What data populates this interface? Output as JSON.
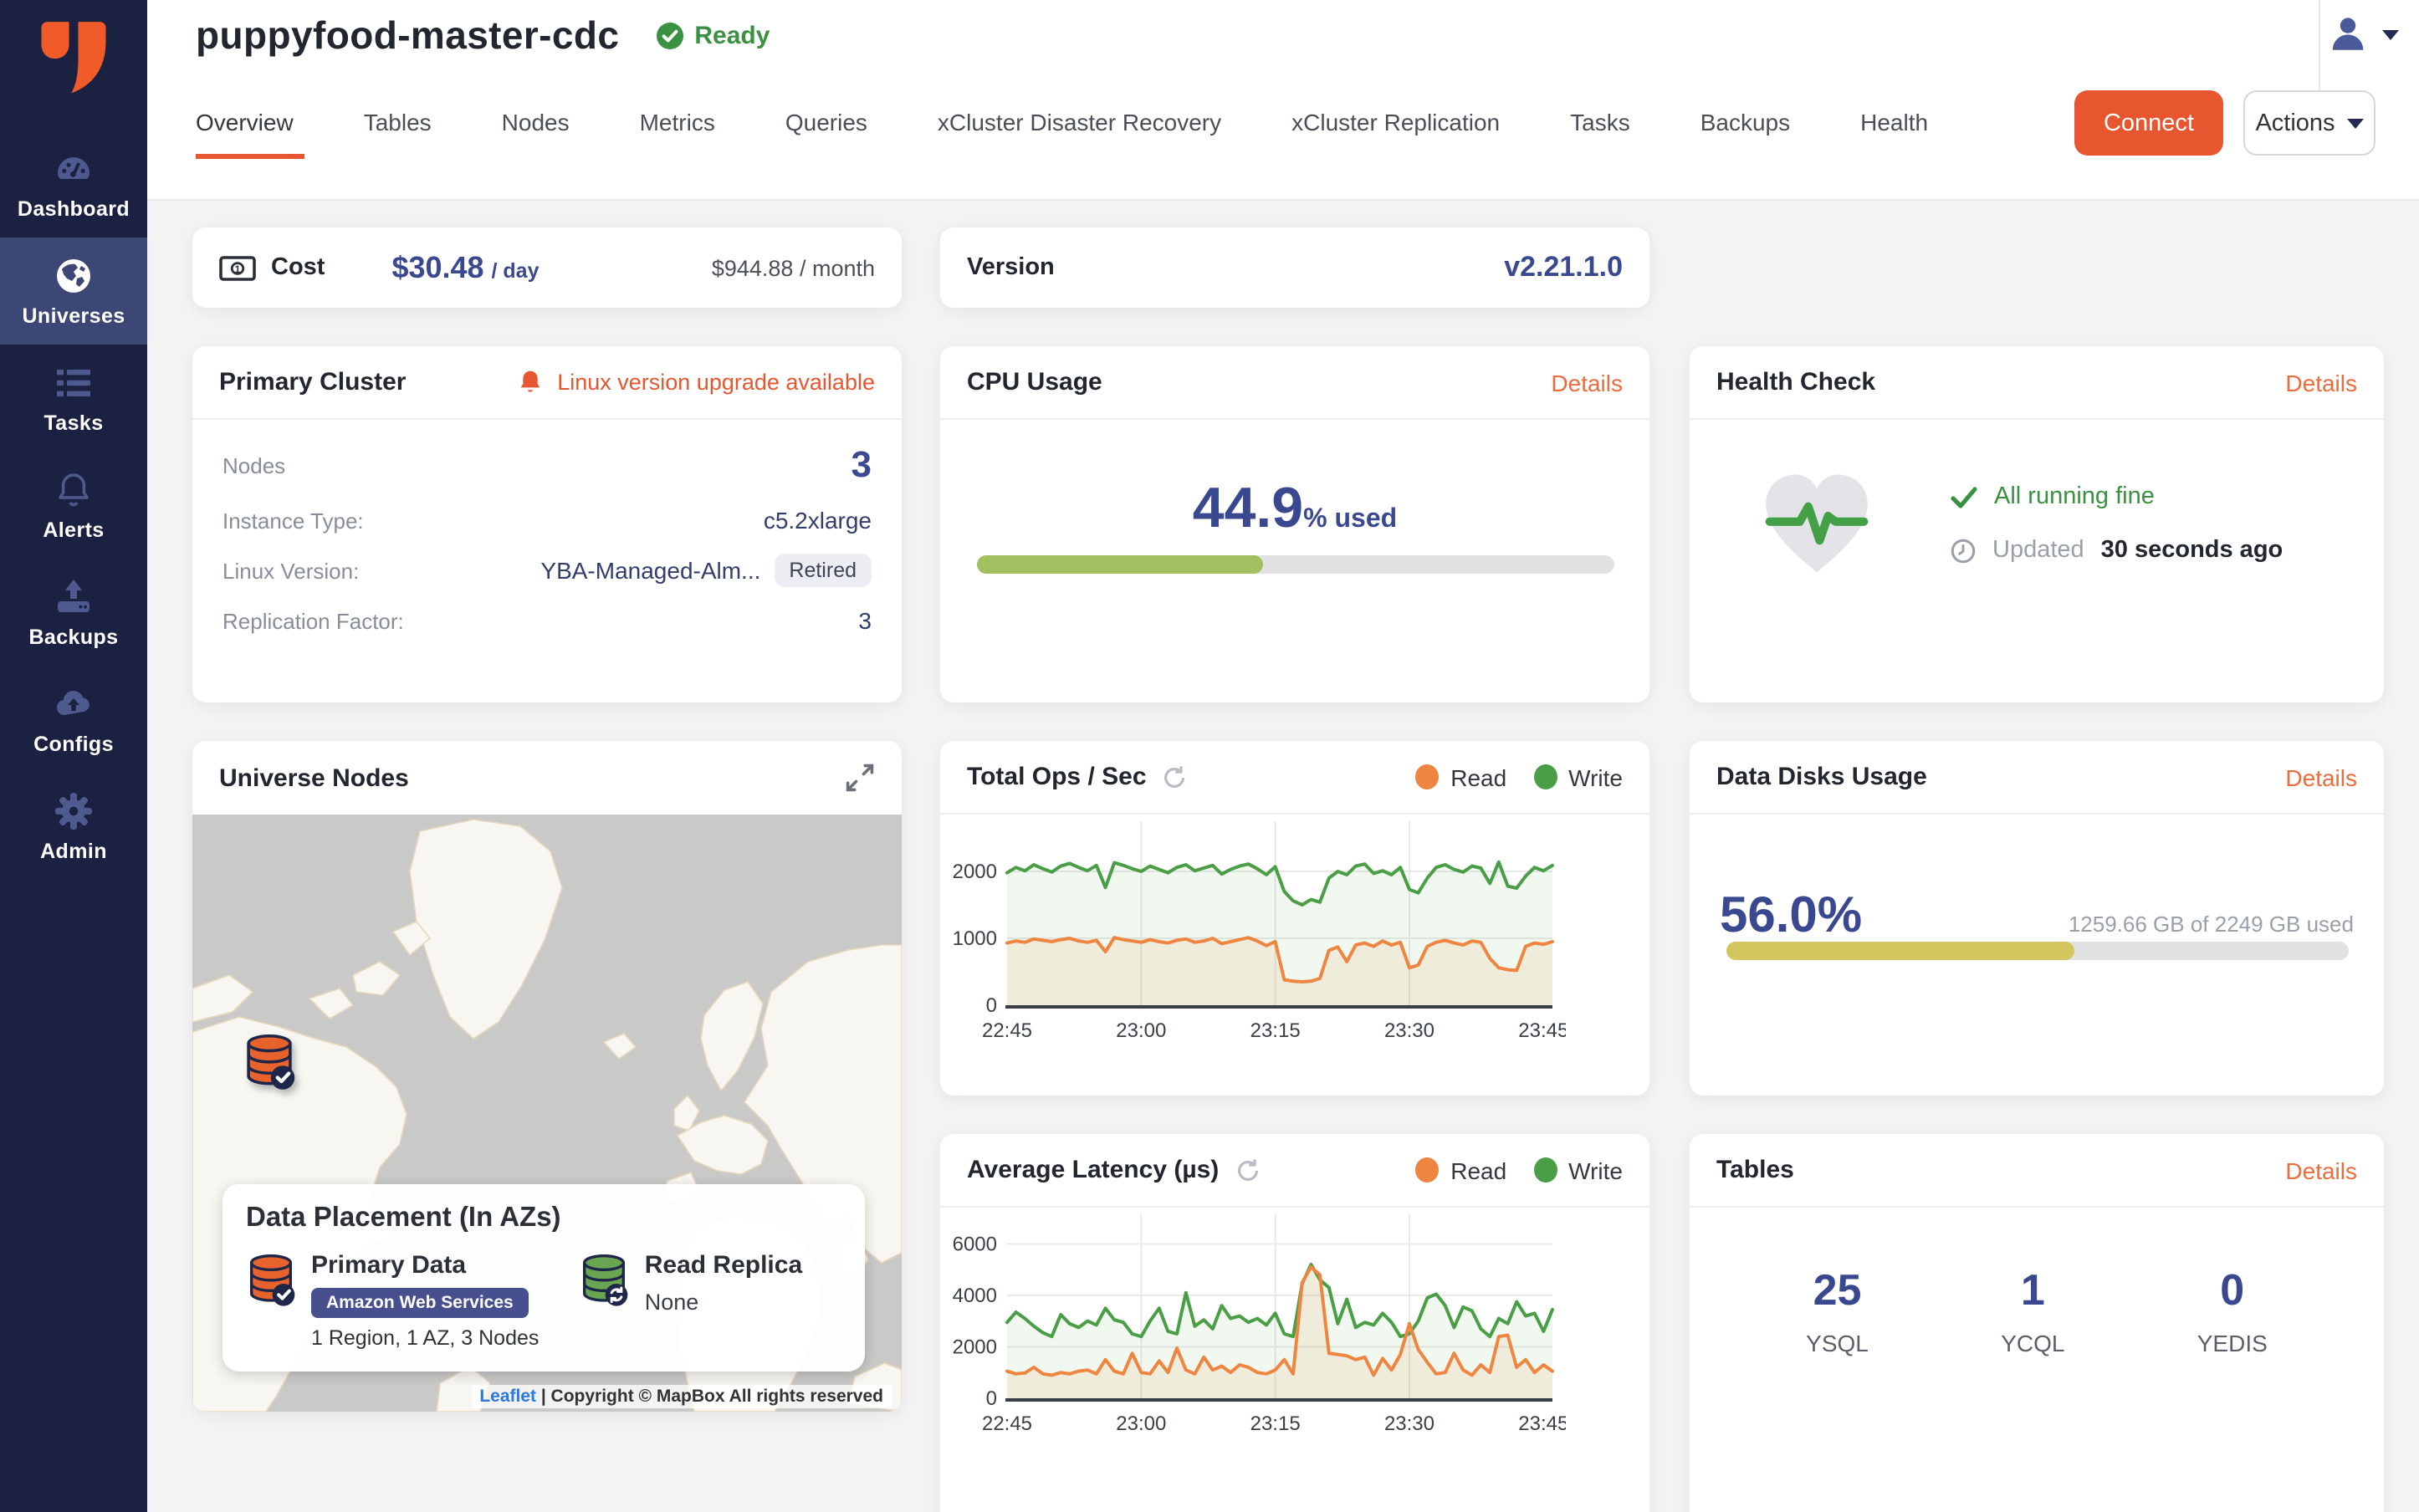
{
  "app": {
    "title": "puppyfood-master-cdc",
    "status": "Ready"
  },
  "topbar": {
    "tabs": [
      {
        "label": "Overview"
      },
      {
        "label": "Tables"
      },
      {
        "label": "Nodes"
      },
      {
        "label": "Metrics"
      },
      {
        "label": "Queries"
      },
      {
        "label": "xCluster Disaster Recovery"
      },
      {
        "label": "xCluster Replication"
      },
      {
        "label": "Tasks"
      },
      {
        "label": "Backups"
      },
      {
        "label": "Health"
      }
    ],
    "connect_label": "Connect",
    "actions_label": "Actions"
  },
  "sidebar": {
    "items": [
      {
        "label": "Dashboard"
      },
      {
        "label": "Universes"
      },
      {
        "label": "Tasks"
      },
      {
        "label": "Alerts"
      },
      {
        "label": "Backups"
      },
      {
        "label": "Configs"
      },
      {
        "label": "Admin"
      }
    ]
  },
  "panels": {
    "cost": {
      "label": "Cost",
      "per_day": "$30.48",
      "per_day_suffix": "/ day",
      "per_month": "$944.88 / month"
    },
    "version": {
      "label": "Version",
      "value": "v2.21.1.0"
    },
    "primary_cluster": {
      "title": "Primary Cluster",
      "alert": "Linux version upgrade available",
      "rows": [
        {
          "label": "Nodes",
          "value": "3"
        },
        {
          "label": "Instance Type:",
          "value": "c5.2xlarge"
        },
        {
          "label": "Linux Version:",
          "value": "YBA-Managed-Alm...",
          "badge": "Retired"
        },
        {
          "label": "Replication Factor:",
          "value": "3"
        }
      ]
    },
    "cpu": {
      "title": "CPU Usage",
      "details": "Details",
      "percent": 44.9,
      "percent_label": "44.9",
      "suffix": "% used"
    },
    "health": {
      "title": "Health Check",
      "details": "Details",
      "status": "All running fine",
      "updated_label": "Updated",
      "updated_value": "30 seconds ago"
    },
    "nodes_map": {
      "title": "Universe Nodes",
      "placement_title": "Data Placement (In AZs)",
      "primary": {
        "label": "Primary Data",
        "provider": "Amazon Web Services",
        "summary": "1 Region, 1 AZ, 3 Nodes"
      },
      "replica": {
        "label": "Read Replica",
        "value": "None"
      },
      "attribution_link": "Leaflet",
      "attribution_rest": "| Copyright © MapBox All rights reserved"
    },
    "disks": {
      "title": "Data Disks Usage",
      "details": "Details",
      "percent": 56.0,
      "percent_label": "56.0%",
      "usage": "1259.66 GB of 2249 GB used"
    },
    "tables": {
      "title": "Tables",
      "details": "Details",
      "counts": [
        {
          "value": "25",
          "label": "YSQL"
        },
        {
          "value": "1",
          "label": "YCQL"
        },
        {
          "value": "0",
          "label": "YEDIS"
        }
      ]
    }
  },
  "chart_data": [
    {
      "id": "ops",
      "type": "area",
      "title": "Total Ops / Sec",
      "x_ticks": [
        "22:45",
        "23:00",
        "23:15",
        "23:30",
        "23:45"
      ],
      "x_minutes": [
        0,
        15,
        30,
        45,
        60
      ],
      "x_total": 61,
      "ylim": [
        0,
        2500
      ],
      "y_ticks": [
        0,
        1000,
        2000
      ],
      "grid": true,
      "legend_position": "top-right",
      "series": [
        {
          "name": "Read",
          "color": "#ee8540",
          "fill": "rgba(235,160,90,0.14)",
          "values": [
            930,
            960,
            940,
            990,
            970,
            950,
            980,
            1000,
            960,
            940,
            970,
            800,
            1010,
            980,
            960,
            940,
            980,
            950,
            930,
            970,
            990,
            940,
            960,
            1000,
            920,
            950,
            980,
            1010,
            960,
            890,
            950,
            380,
            360,
            350,
            360,
            400,
            820,
            870,
            650,
            900,
            930,
            880,
            960,
            900,
            940,
            560,
            600,
            880,
            940,
            970,
            930,
            900,
            960,
            940,
            700,
            560,
            530,
            520,
            880,
            930,
            910,
            950
          ]
        },
        {
          "name": "Write",
          "color": "#4a9e45",
          "fill": "rgba(76,160,70,0.08)",
          "values": [
            1980,
            2060,
            2010,
            2100,
            2040,
            1990,
            2080,
            2120,
            2060,
            2010,
            2090,
            1760,
            2130,
            2090,
            2040,
            2000,
            2080,
            2030,
            1980,
            2060,
            2100,
            2010,
            2050,
            2090,
            1960,
            2030,
            2080,
            2110,
            2040,
            1950,
            2070,
            1700,
            1560,
            1500,
            1580,
            1540,
            1900,
            2000,
            1950,
            2080,
            2110,
            1970,
            2010,
            1950,
            2060,
            1730,
            1680,
            1900,
            2060,
            2100,
            2030,
            1990,
            2080,
            2050,
            1820,
            2140,
            1780,
            1750,
            1930,
            2060,
            2010,
            2090
          ]
        }
      ]
    },
    {
      "id": "latency",
      "type": "area",
      "title": "Average Latency (µs)",
      "x_ticks": [
        "22:45",
        "23:00",
        "23:15",
        "23:30",
        "23:45"
      ],
      "x_minutes": [
        0,
        15,
        30,
        45,
        60
      ],
      "x_total": 61,
      "ylim": [
        0,
        6500
      ],
      "y_ticks": [
        0,
        2000,
        4000,
        6000
      ],
      "grid": true,
      "legend_position": "top-right",
      "series": [
        {
          "name": "Read",
          "color": "#ee8540",
          "fill": "rgba(235,160,90,0.14)",
          "values": [
            1050,
            950,
            980,
            1200,
            950,
            900,
            1000,
            950,
            1050,
            1100,
            950,
            1500,
            1050,
            950,
            1750,
            1000,
            950,
            1450,
            1000,
            1950,
            1100,
            950,
            1600,
            1100,
            1250,
            1000,
            1300,
            1200,
            1000,
            950,
            1100,
            1500,
            950,
            4500,
            5100,
            4800,
            1750,
            1700,
            1650,
            1500,
            1600,
            900,
            1550,
            1100,
            1700,
            2900,
            1900,
            1400,
            950,
            1000,
            1750,
            1100,
            900,
            1300,
            1000,
            2400,
            2450,
            1200,
            1500,
            1000,
            1300,
            1050
          ]
        },
        {
          "name": "Write",
          "color": "#4a9e45",
          "fill": "rgba(76,160,70,0.08)",
          "values": [
            2950,
            3350,
            3100,
            2800,
            2550,
            2400,
            3250,
            2900,
            2750,
            3000,
            2850,
            3500,
            3050,
            2950,
            2500,
            2400,
            3000,
            3500,
            2600,
            2500,
            4100,
            2800,
            3050,
            2700,
            3600,
            3100,
            3200,
            2950,
            3100,
            2850,
            3300,
            2500,
            2400,
            4450,
            5200,
            4600,
            4300,
            2900,
            3850,
            2750,
            2950,
            2850,
            3300,
            2950,
            2400,
            2500,
            3000,
            3900,
            4050,
            3600,
            2750,
            3550,
            3400,
            2700,
            2400,
            3100,
            2900,
            3750,
            3200,
            3300,
            2600,
            3450
          ]
        }
      ]
    }
  ],
  "colors": {
    "accent_orange": "#e8562f",
    "link_orange": "#ed6c3c",
    "number_blue": "#3a4890",
    "sidebar_bg": "#1b2141",
    "sidebar_active": "#3d4775",
    "ready_green": "#3a9142",
    "cpu_bar": "#a2c05f",
    "disk_bar": "#d3c65e",
    "read_series": "#ee8540",
    "write_series": "#4a9e45"
  }
}
